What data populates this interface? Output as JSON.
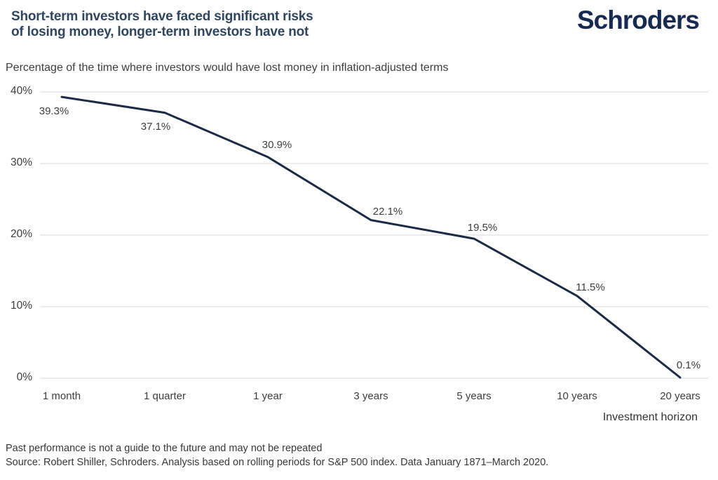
{
  "header": {
    "title_lines": [
      "Short-term investors have faced significant risks",
      "of losing money, longer-term investors have not"
    ],
    "logo_text": "Schroders"
  },
  "subtitle": "Percentage of the time where investors would have lost money in inflation-adjusted terms",
  "chart_data": {
    "type": "line",
    "title": "Percentage of the time where investors would have lost money in inflation-adjusted terms",
    "categories": [
      "1 month",
      "1 quarter",
      "1 year",
      "3 years",
      "5 years",
      "10 years",
      "20 years"
    ],
    "values": [
      39.3,
      37.1,
      30.9,
      22.1,
      19.5,
      11.5,
      0.1
    ],
    "data_labels": [
      "39.3%",
      "37.1%",
      "30.9%",
      "22.1%",
      "19.5%",
      "11.5%",
      "0.1%"
    ],
    "xlabel": "Investment horizon",
    "ylabel": "",
    "ylim": [
      0,
      40
    ],
    "yticks": [
      0,
      10,
      20,
      30,
      40
    ],
    "ytick_labels": [
      "0%",
      "10%",
      "20%",
      "30%",
      "40%"
    ],
    "grid": "horizontal",
    "legend": "none",
    "line_color": "#1c2b45",
    "gridline_color": "#d9d9d9"
  },
  "footnotes": [
    "Past performance is not a guide to the future and may not be repeated",
    "Source: Robert Shiller, Schroders. Analysis based on rolling periods for S&P 500 index. Data January 1871–March 2020."
  ]
}
